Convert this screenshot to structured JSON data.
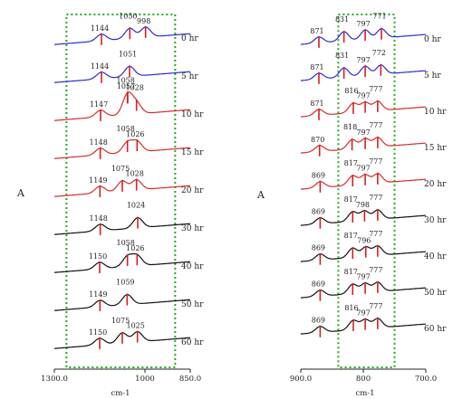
{
  "chart_data": [
    {
      "type": "line",
      "title": "",
      "ylabel": "A",
      "xlabel": "cm-1",
      "x_axis_reversed": true,
      "xlim": [
        1300.0,
        850.0
      ],
      "xticks": [
        "1300.0",
        "1000",
        "850.0"
      ],
      "highlight_box_x": [
        1260,
        900
      ],
      "highlight_box_style": "green dotted rectangle",
      "grid": false,
      "series": [
        {
          "name": "0 hr",
          "color": "#2b2bd6",
          "peaks": [
            {
              "x": 1144,
              "label": "1144"
            },
            {
              "x": 1050,
              "label": "1050"
            },
            {
              "x": 998,
              "label": "998"
            }
          ]
        },
        {
          "name": "5 hr",
          "color": "#2b2bd6",
          "peaks": [
            {
              "x": 1144,
              "label": "1144"
            },
            {
              "x": 1051,
              "label": "1051"
            }
          ]
        },
        {
          "name": "10 hr",
          "color": "#d62b2b",
          "peaks": [
            {
              "x": 1147,
              "label": "1147"
            },
            {
              "x": 1058,
              "label": "1058"
            },
            {
              "x": 1057,
              "label": "1057"
            },
            {
              "x": 1028,
              "label": "1028"
            }
          ]
        },
        {
          "name": "15 hr",
          "color": "#d62b2b",
          "peaks": [
            {
              "x": 1148,
              "label": "1148"
            },
            {
              "x": 1058,
              "label": "1058"
            },
            {
              "x": 1026,
              "label": "1026"
            }
          ]
        },
        {
          "name": "20 hr",
          "color": "#d62b2b",
          "peaks": [
            {
              "x": 1149,
              "label": "1149"
            },
            {
              "x": 1075,
              "label": "1075"
            },
            {
              "x": 1028,
              "label": "1028"
            }
          ]
        },
        {
          "name": "30 hr",
          "color": "#111111",
          "peaks": [
            {
              "x": 1148,
              "label": "1148"
            },
            {
              "x": 1024,
              "label": "1024"
            }
          ]
        },
        {
          "name": "40 hr",
          "color": "#111111",
          "peaks": [
            {
              "x": 1150,
              "label": "1150"
            },
            {
              "x": 1058,
              "label": "1058"
            },
            {
              "x": 1026,
              "label": "1026"
            }
          ]
        },
        {
          "name": "50 hr",
          "color": "#111111",
          "peaks": [
            {
              "x": 1149,
              "label": "1149"
            },
            {
              "x": 1059,
              "label": "1059"
            }
          ]
        },
        {
          "name": "60 hr",
          "color": "#111111",
          "peaks": [
            {
              "x": 1150,
              "label": "1150"
            },
            {
              "x": 1075,
              "label": "1075"
            },
            {
              "x": 1025,
              "label": "1025"
            }
          ]
        }
      ]
    },
    {
      "type": "line",
      "title": "",
      "ylabel": "A",
      "xlabel": "cm-1",
      "x_axis_reversed": true,
      "xlim": [
        900.0,
        700.0
      ],
      "xticks": [
        "900.0",
        "800",
        "700.0"
      ],
      "highlight_box_x": [
        840,
        750
      ],
      "highlight_box_style": "green dotted rectangle",
      "grid": false,
      "series": [
        {
          "name": "0 hr",
          "color": "#2b2bd6",
          "peaks": [
            {
              "x": 871,
              "label": "871"
            },
            {
              "x": 831,
              "label": "831"
            },
            {
              "x": 797,
              "label": "797"
            },
            {
              "x": 771,
              "label": "771"
            }
          ]
        },
        {
          "name": "5 hr",
          "color": "#2b2bd6",
          "peaks": [
            {
              "x": 871,
              "label": "871"
            },
            {
              "x": 831,
              "label": "831"
            },
            {
              "x": 797,
              "label": "797"
            },
            {
              "x": 772,
              "label": "772"
            }
          ]
        },
        {
          "name": "10 hr",
          "color": "#d62b2b",
          "peaks": [
            {
              "x": 871,
              "label": "871"
            },
            {
              "x": 816,
              "label": "816"
            },
            {
              "x": 797,
              "label": "797"
            },
            {
              "x": 777,
              "label": "777"
            }
          ]
        },
        {
          "name": "15 hr",
          "color": "#d62b2b",
          "peaks": [
            {
              "x": 870,
              "label": "870"
            },
            {
              "x": 818,
              "label": "818"
            },
            {
              "x": 797,
              "label": "797"
            },
            {
              "x": 777,
              "label": "777"
            }
          ]
        },
        {
          "name": "20 hr",
          "color": "#d62b2b",
          "peaks": [
            {
              "x": 869,
              "label": "869"
            },
            {
              "x": 817,
              "label": "817"
            },
            {
              "x": 797,
              "label": "797"
            },
            {
              "x": 777,
              "label": "777"
            }
          ]
        },
        {
          "name": "30 hr",
          "color": "#111111",
          "peaks": [
            {
              "x": 869,
              "label": "869"
            },
            {
              "x": 817,
              "label": "817"
            },
            {
              "x": 798,
              "label": "798"
            },
            {
              "x": 777,
              "label": "777"
            }
          ]
        },
        {
          "name": "40 hr",
          "color": "#111111",
          "peaks": [
            {
              "x": 869,
              "label": "869"
            },
            {
              "x": 817,
              "label": "817"
            },
            {
              "x": 796,
              "label": "796"
            },
            {
              "x": 777,
              "label": "777"
            }
          ]
        },
        {
          "name": "50 hr",
          "color": "#111111",
          "peaks": [
            {
              "x": 869,
              "label": "869"
            },
            {
              "x": 817,
              "label": "817"
            },
            {
              "x": 797,
              "label": "797"
            },
            {
              "x": 777,
              "label": "777"
            }
          ]
        },
        {
          "name": "60 hr",
          "color": "#111111",
          "peaks": [
            {
              "x": 869,
              "label": "869"
            },
            {
              "x": 816,
              "label": "816"
            },
            {
              "x": 797,
              "label": "797"
            },
            {
              "x": 777,
              "label": "777"
            }
          ]
        }
      ]
    }
  ]
}
